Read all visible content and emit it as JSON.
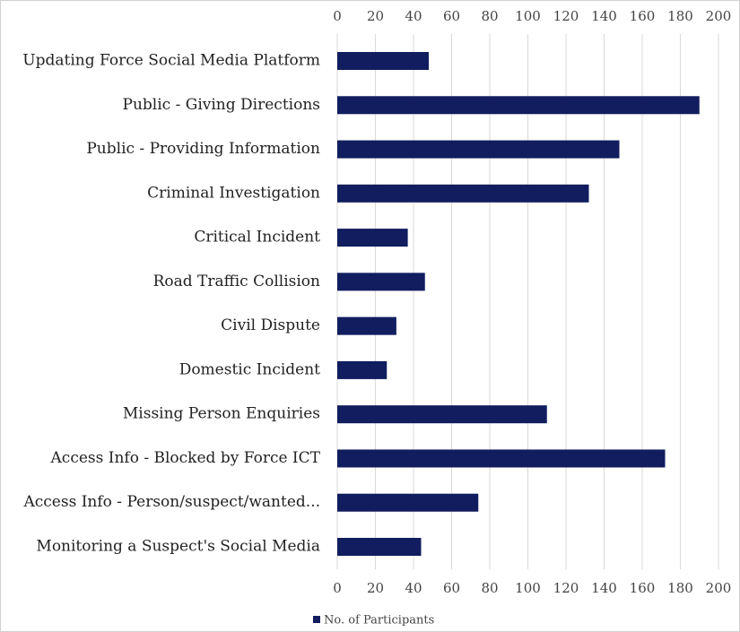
{
  "chart_data": {
    "type": "barh",
    "categories": [
      "Updating Force Social Media Platform",
      "Public - Giving Directions",
      "Public - Providing Information",
      "Criminal Investigation",
      "Critical Incident",
      "Road Traffic Collision",
      "Civil Dispute",
      "Domestic Incident",
      "Missing Person Enquiries",
      "Access Info - Blocked by Force ICT",
      "Access Info - Person/suspect/wanted...",
      "Monitoring a Suspect's Social Media"
    ],
    "series": [
      {
        "name": "No. of Participants",
        "color": "#111d5e",
        "values": [
          48,
          190,
          148,
          132,
          37,
          46,
          31,
          26,
          110,
          172,
          74,
          44
        ]
      }
    ],
    "xlim": [
      0,
      200
    ],
    "xticks": [
      0,
      20,
      40,
      60,
      80,
      100,
      120,
      140,
      160,
      180,
      200
    ],
    "grid": true,
    "legend": "bottom"
  }
}
